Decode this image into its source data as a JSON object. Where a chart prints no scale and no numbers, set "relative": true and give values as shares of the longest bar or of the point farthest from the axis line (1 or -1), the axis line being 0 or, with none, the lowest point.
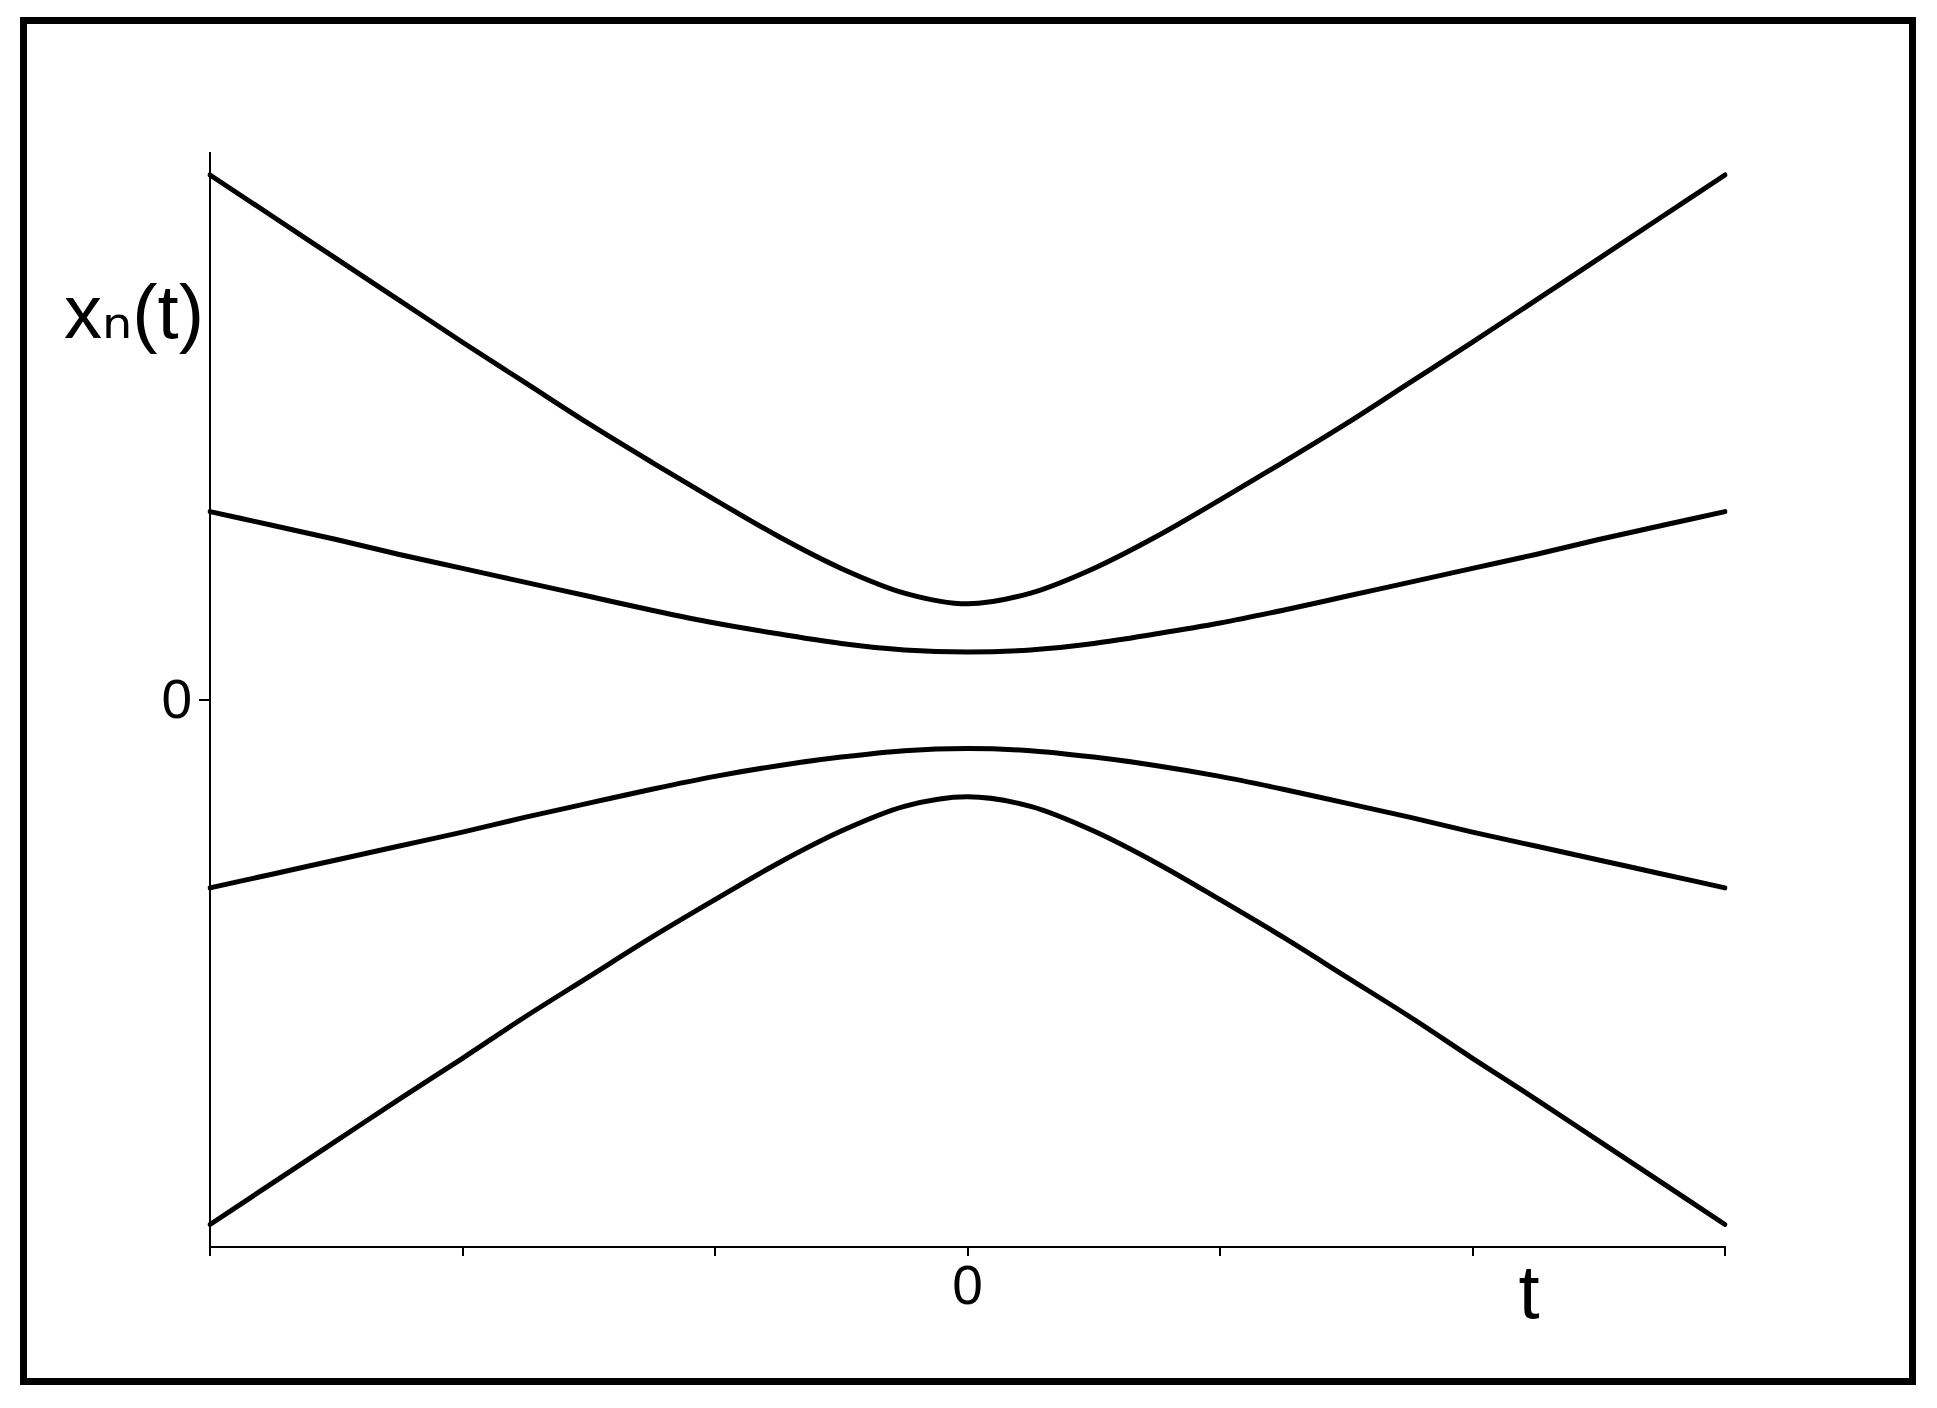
{
  "chart_data": {
    "type": "line",
    "xlabel": "t",
    "ylabel": "xₙ(t)",
    "relative": true,
    "categories": [
      null,
      null,
      null,
      null,
      null,
      null,
      null,
      null,
      null,
      null,
      null,
      null,
      null,
      null,
      null,
      null,
      null,
      null,
      null,
      null,
      null,
      null,
      null,
      null,
      null
    ],
    "series": [
      {
        "color": "#000000",
        "values": [
          1,
          0.961,
          0.922,
          0.883,
          0.844,
          0.806,
          0.768,
          0.732,
          0.697,
          0.663,
          0.633,
          0.61,
          0.6,
          0.61,
          0.633,
          0.663,
          0.697,
          0.732,
          0.768,
          0.806,
          0.844,
          0.883,
          0.922,
          0.961,
          1
        ]
      },
      {
        "color": "#000000",
        "values": [
          0.686,
          0.673,
          0.66,
          0.646,
          0.633,
          0.62,
          0.607,
          0.594,
          0.582,
          0.572,
          0.563,
          0.557,
          0.555,
          0.557,
          0.563,
          0.572,
          0.582,
          0.594,
          0.607,
          0.62,
          0.633,
          0.646,
          0.66,
          0.673,
          0.686
        ]
      },
      {
        "color": "#000000",
        "values": [
          0.335,
          0.348,
          0.361,
          0.374,
          0.387,
          0.401,
          0.414,
          0.427,
          0.439,
          0.449,
          0.457,
          0.463,
          0.465,
          0.463,
          0.457,
          0.449,
          0.439,
          0.427,
          0.414,
          0.401,
          0.387,
          0.374,
          0.361,
          0.348,
          0.335
        ]
      },
      {
        "color": "#000000",
        "values": [
          0.021,
          0.06,
          0.099,
          0.138,
          0.176,
          0.215,
          0.252,
          0.289,
          0.324,
          0.358,
          0.388,
          0.411,
          0.42,
          0.411,
          0.388,
          0.358,
          0.324,
          0.289,
          0.252,
          0.215,
          0.176,
          0.138,
          0.099,
          0.06,
          0.021
        ]
      }
    ],
    "annotations": [
      "0",
      "0"
    ],
    "grid": false,
    "marker": "none",
    "line_style": "solid"
  }
}
